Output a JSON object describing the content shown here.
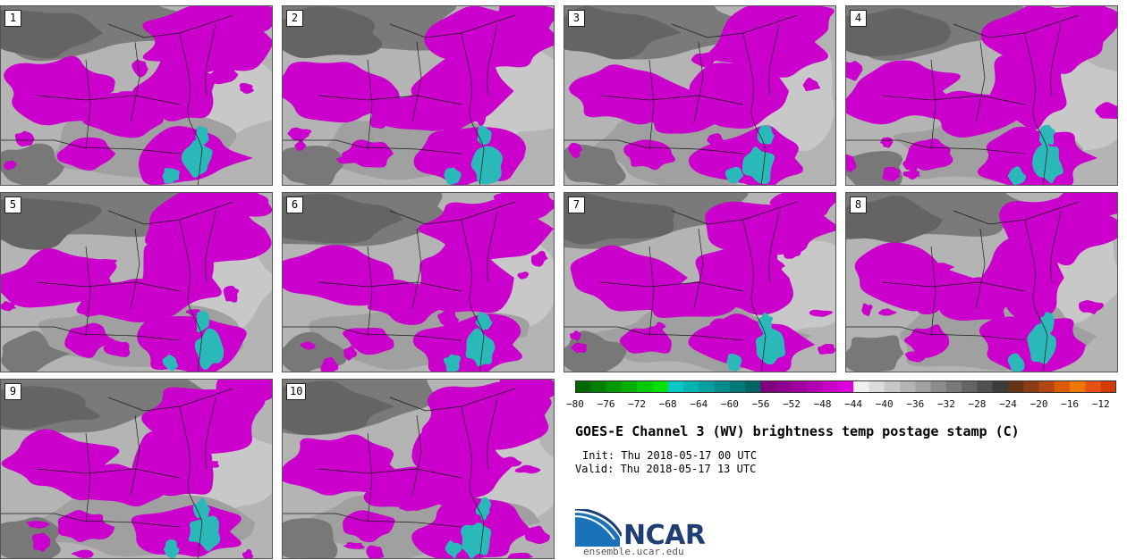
{
  "panels": [
    {
      "label": "1"
    },
    {
      "label": "2"
    },
    {
      "label": "3"
    },
    {
      "label": "4"
    },
    {
      "label": "5"
    },
    {
      "label": "6"
    },
    {
      "label": "7"
    },
    {
      "label": "8"
    },
    {
      "label": "9"
    },
    {
      "label": "10"
    }
  ],
  "colorbar": {
    "min": -80,
    "max": -10,
    "step": 2,
    "ticks": [
      "−80",
      "−76",
      "−72",
      "−68",
      "−64",
      "−60",
      "−56",
      "−52",
      "−48",
      "−44",
      "−40",
      "−36",
      "−32",
      "−28",
      "−24",
      "−20",
      "−16",
      "−12"
    ],
    "colors": [
      "#006600",
      "#007f00",
      "#009800",
      "#00b000",
      "#00c800",
      "#00e000",
      "#00c8c8",
      "#00b4b4",
      "#00a0a0",
      "#008c8c",
      "#007878",
      "#006464",
      "#800080",
      "#900090",
      "#a000a0",
      "#b400b4",
      "#c800c8",
      "#dc00dc",
      "#f0f0f0",
      "#dcdcdc",
      "#c8c8c8",
      "#b4b4b4",
      "#a0a0a0",
      "#8c8c8c",
      "#787878",
      "#646464",
      "#505050",
      "#3c3c3c",
      "#643214",
      "#8c3c14",
      "#b44614",
      "#dc5a00",
      "#f07800",
      "#e65014",
      "#d23c00"
    ]
  },
  "title": "GOES-E Channel 3 (WV) brightness temp postage stamp (C)",
  "init": "Init: Thu 2018-05-17 00 UTC",
  "valid": "Valid: Thu 2018-05-17 13 UTC",
  "logo": {
    "name": "NCAR",
    "url": "ensemble.ucar.edu"
  }
}
